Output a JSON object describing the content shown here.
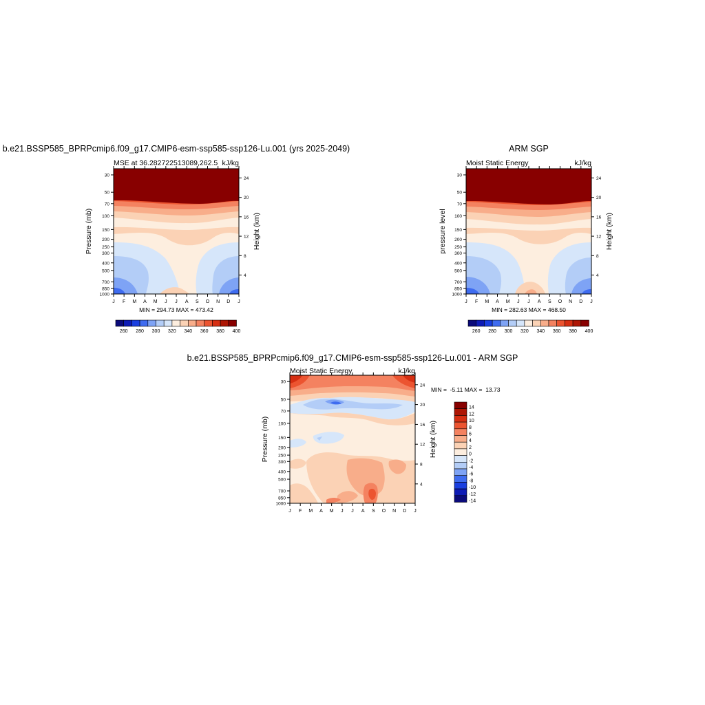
{
  "chart_data": [
    {
      "type": "heatmap",
      "title": "b.e21.BSSP585_BPRPcmip6.f09_g17.CMIP6-esm-ssp585-ssp126-Lu.001 (yrs 2025-2049)",
      "left_label": "MSE at 36.282722513089,262.5",
      "units": "kJ/kg",
      "ylabel": "Pressure (mb)",
      "ylabel_right": "Height (km)",
      "x_ticks": [
        "J",
        "F",
        "M",
        "A",
        "M",
        "J",
        "J",
        "A",
        "S",
        "O",
        "N",
        "D",
        "J"
      ],
      "y_ticks": [
        30,
        50,
        70,
        100,
        150,
        200,
        250,
        300,
        400,
        500,
        700,
        850,
        1000
      ],
      "y_ticks_right": [
        24,
        20,
        16,
        12,
        8,
        4
      ],
      "stats": "MIN = 294.73 MAX = 473.42",
      "colorbar_labels": [
        260,
        280,
        300,
        320,
        340,
        360,
        380,
        400
      ]
    },
    {
      "type": "heatmap",
      "title": "ARM SGP",
      "left_label": "Moist Static Energy",
      "units": "kJ/kg",
      "ylabel": "pressure level",
      "ylabel_right": "Height (km)",
      "x_ticks": [
        "J",
        "F",
        "M",
        "A",
        "M",
        "J",
        "J",
        "A",
        "S",
        "O",
        "N",
        "D",
        "J"
      ],
      "y_ticks": [
        30,
        50,
        70,
        100,
        150,
        200,
        250,
        300,
        400,
        500,
        700,
        850,
        1000
      ],
      "y_ticks_right": [
        24,
        20,
        16,
        12,
        8,
        4
      ],
      "stats": "MIN = 282.63 MAX = 468.50",
      "colorbar_labels": [
        260,
        280,
        300,
        320,
        340,
        360,
        380,
        400
      ]
    },
    {
      "type": "heatmap",
      "title": "b.e21.BSSP585_BPRPcmip6.f09_g17.CMIP6-esm-ssp585-ssp126-Lu.001 - ARM SGP",
      "left_label": "Moist Static Energy",
      "units": "kJ/kg",
      "ylabel": "Pressure (mb)",
      "ylabel_right": "Height (km)",
      "x_ticks": [
        "J",
        "F",
        "M",
        "A",
        "M",
        "J",
        "J",
        "A",
        "S",
        "O",
        "N",
        "D",
        "J"
      ],
      "y_ticks": [
        30,
        50,
        70,
        100,
        150,
        200,
        250,
        300,
        400,
        500,
        700,
        850,
        1000
      ],
      "y_ticks_right": [
        24,
        20,
        16,
        12,
        8,
        4
      ],
      "stats": "MIN =  -5.11 MAX =  13.73",
      "colorbar_labels": [
        14,
        12,
        10,
        8,
        6,
        4,
        2,
        0,
        -2,
        -4,
        -6,
        -8,
        -10,
        -12,
        -14
      ]
    }
  ],
  "palettes": {
    "mse": [
      "#0a0a7a",
      "#0d1bb5",
      "#1a3fe0",
      "#3f6cf0",
      "#7ea3f5",
      "#b3cdf7",
      "#d6e6fa",
      "#fdeedf",
      "#fbd2b5",
      "#f8ad8a",
      "#f48260",
      "#ec5430",
      "#d62f12",
      "#ae1604",
      "#880000"
    ],
    "diff": [
      "#880000",
      "#ae1604",
      "#d62f12",
      "#ec5430",
      "#f48260",
      "#f8ad8a",
      "#fbd2b5",
      "#fdeedf",
      "#d6e6fa",
      "#b3cdf7",
      "#7ea3f5",
      "#3f6cf0",
      "#1a3fe0",
      "#0d1bb5",
      "#0a0a7a"
    ]
  }
}
